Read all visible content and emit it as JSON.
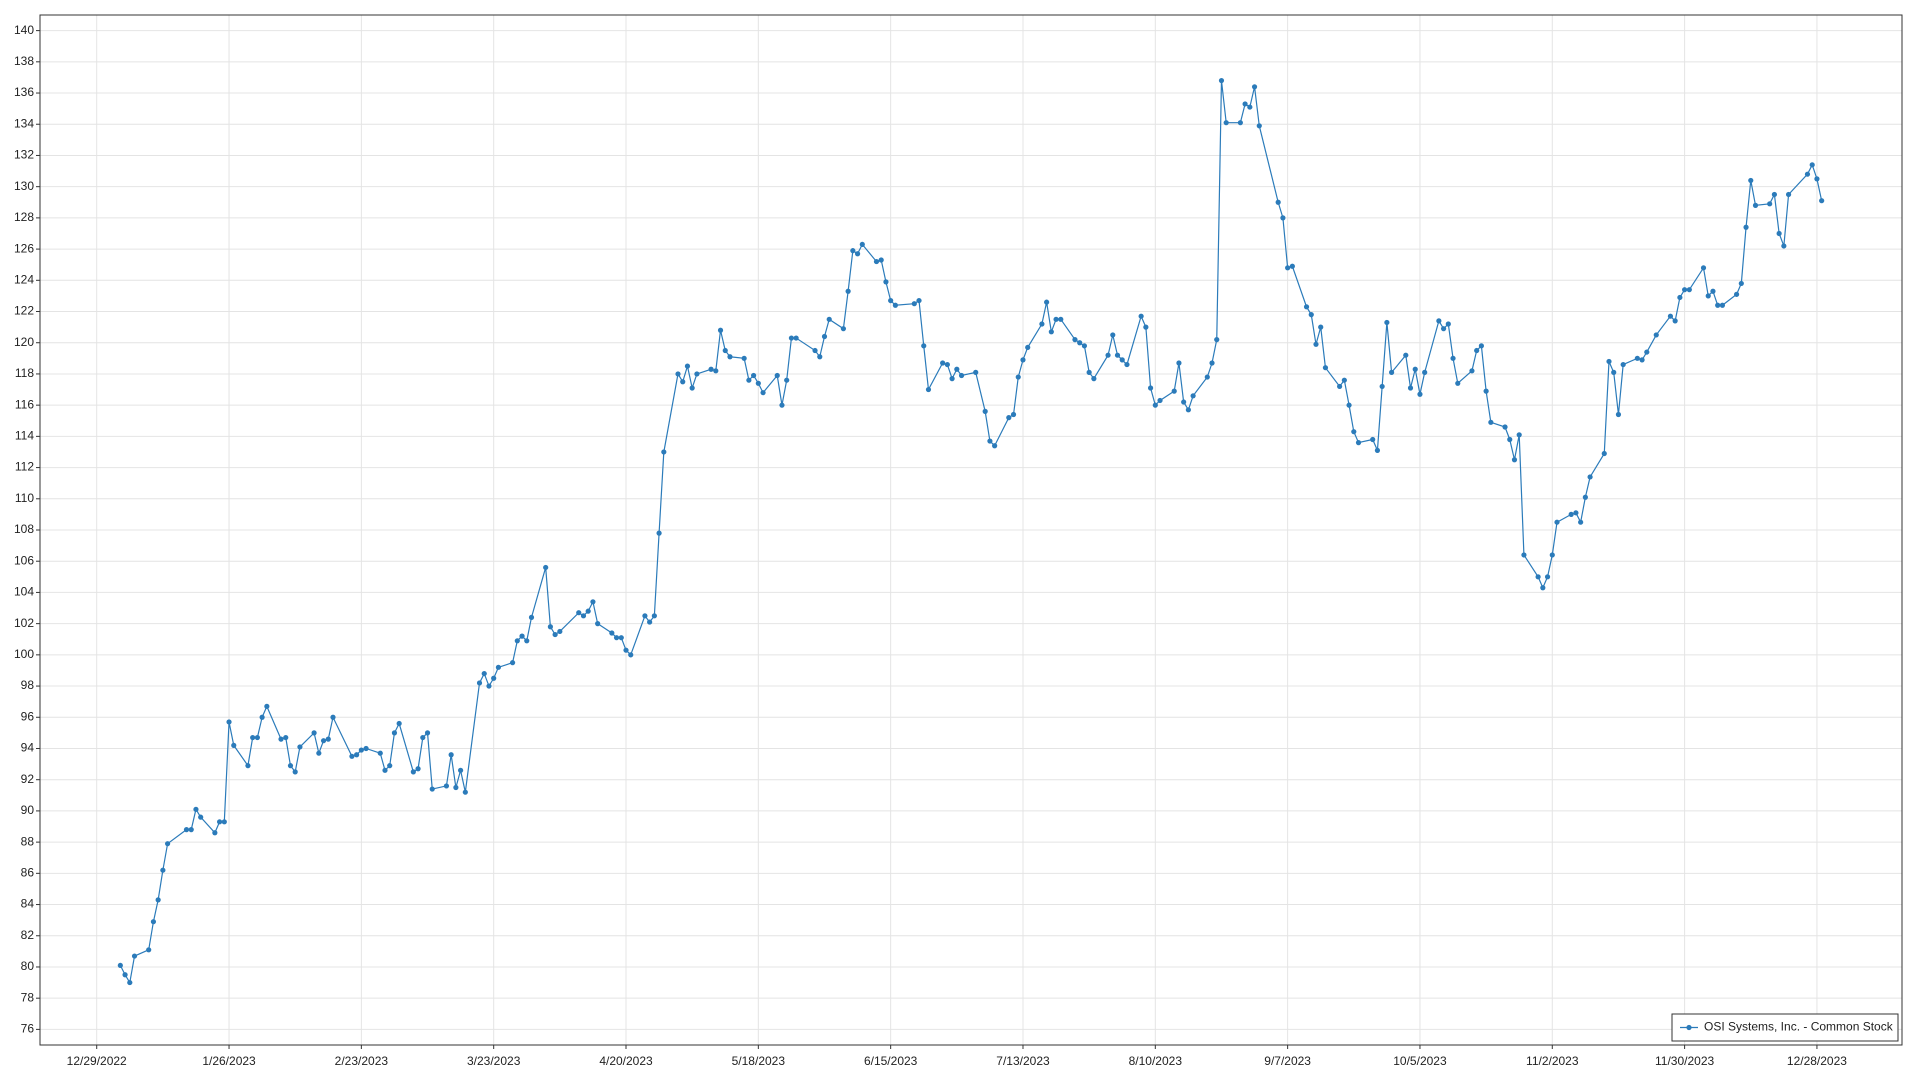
{
  "chart_data": {
    "type": "line",
    "x": [
      "1/3/2023",
      "1/4/2023",
      "1/5/2023",
      "1/6/2023",
      "1/9/2023",
      "1/10/2023",
      "1/11/2023",
      "1/12/2023",
      "1/13/2023",
      "1/17/2023",
      "1/18/2023",
      "1/19/2023",
      "1/20/2023",
      "1/23/2023",
      "1/24/2023",
      "1/25/2023",
      "1/26/2023",
      "1/27/2023",
      "1/30/2023",
      "1/31/2023",
      "2/1/2023",
      "2/2/2023",
      "2/3/2023",
      "2/6/2023",
      "2/7/2023",
      "2/8/2023",
      "2/9/2023",
      "2/10/2023",
      "2/13/2023",
      "2/14/2023",
      "2/15/2023",
      "2/16/2023",
      "2/17/2023",
      "2/21/2023",
      "2/22/2023",
      "2/23/2023",
      "2/24/2023",
      "2/27/2023",
      "2/28/2023",
      "3/1/2023",
      "3/2/2023",
      "3/3/2023",
      "3/6/2023",
      "3/7/2023",
      "3/8/2023",
      "3/9/2023",
      "3/10/2023",
      "3/13/2023",
      "3/14/2023",
      "3/15/2023",
      "3/16/2023",
      "3/17/2023",
      "3/20/2023",
      "3/21/2023",
      "3/22/2023",
      "3/23/2023",
      "3/24/2023",
      "3/27/2023",
      "3/28/2023",
      "3/29/2023",
      "3/30/2023",
      "3/31/2023",
      "4/3/2023",
      "4/4/2023",
      "4/5/2023",
      "4/6/2023",
      "4/10/2023",
      "4/11/2023",
      "4/12/2023",
      "4/13/2023",
      "4/14/2023",
      "4/17/2023",
      "4/18/2023",
      "4/19/2023",
      "4/20/2023",
      "4/21/2023",
      "4/24/2023",
      "4/25/2023",
      "4/26/2023",
      "4/27/2023",
      "4/28/2023",
      "5/1/2023",
      "5/2/2023",
      "5/3/2023",
      "5/4/2023",
      "5/5/2023",
      "5/8/2023",
      "5/9/2023",
      "5/10/2023",
      "5/11/2023",
      "5/12/2023",
      "5/15/2023",
      "5/16/2023",
      "5/17/2023",
      "5/18/2023",
      "5/19/2023",
      "5/22/2023",
      "5/23/2023",
      "5/24/2023",
      "5/25/2023",
      "5/26/2023",
      "5/30/2023",
      "5/31/2023",
      "6/1/2023",
      "6/2/2023",
      "6/5/2023",
      "6/6/2023",
      "6/7/2023",
      "6/8/2023",
      "6/9/2023",
      "6/12/2023",
      "6/13/2023",
      "6/14/2023",
      "6/15/2023",
      "6/16/2023",
      "6/20/2023",
      "6/21/2023",
      "6/22/2023",
      "6/23/2023",
      "6/26/2023",
      "6/27/2023",
      "6/28/2023",
      "6/29/2023",
      "6/30/2023",
      "7/3/2023",
      "7/5/2023",
      "7/6/2023",
      "7/7/2023",
      "7/10/2023",
      "7/11/2023",
      "7/12/2023",
      "7/13/2023",
      "7/14/2023",
      "7/17/2023",
      "7/18/2023",
      "7/19/2023",
      "7/20/2023",
      "7/21/2023",
      "7/24/2023",
      "7/25/2023",
      "7/26/2023",
      "7/27/2023",
      "7/28/2023",
      "7/31/2023",
      "8/1/2023",
      "8/2/2023",
      "8/3/2023",
      "8/4/2023",
      "8/7/2023",
      "8/8/2023",
      "8/9/2023",
      "8/10/2023",
      "8/11/2023",
      "8/14/2023",
      "8/15/2023",
      "8/16/2023",
      "8/17/2023",
      "8/18/2023",
      "8/21/2023",
      "8/22/2023",
      "8/23/2023",
      "8/24/2023",
      "8/25/2023",
      "8/28/2023",
      "8/29/2023",
      "8/30/2023",
      "8/31/2023",
      "9/1/2023",
      "9/5/2023",
      "9/6/2023",
      "9/7/2023",
      "9/8/2023",
      "9/11/2023",
      "9/12/2023",
      "9/13/2023",
      "9/14/2023",
      "9/15/2023",
      "9/18/2023",
      "9/19/2023",
      "9/20/2023",
      "9/21/2023",
      "9/22/2023",
      "9/25/2023",
      "9/26/2023",
      "9/27/2023",
      "9/28/2023",
      "9/29/2023",
      "10/2/2023",
      "10/3/2023",
      "10/4/2023",
      "10/5/2023",
      "10/6/2023",
      "10/9/2023",
      "10/10/2023",
      "10/11/2023",
      "10/12/2023",
      "10/13/2023",
      "10/16/2023",
      "10/17/2023",
      "10/18/2023",
      "10/19/2023",
      "10/20/2023",
      "10/23/2023",
      "10/24/2023",
      "10/25/2023",
      "10/26/2023",
      "10/27/2023",
      "10/30/2023",
      "10/31/2023",
      "11/1/2023",
      "11/2/2023",
      "11/3/2023",
      "11/6/2023",
      "11/7/2023",
      "11/8/2023",
      "11/9/2023",
      "11/10/2023",
      "11/13/2023",
      "11/14/2023",
      "11/15/2023",
      "11/16/2023",
      "11/17/2023",
      "11/20/2023",
      "11/21/2023",
      "11/22/2023",
      "11/24/2023",
      "11/27/2023",
      "11/28/2023",
      "11/29/2023",
      "11/30/2023",
      "12/1/2023",
      "12/4/2023",
      "12/5/2023",
      "12/6/2023",
      "12/7/2023",
      "12/8/2023",
      "12/11/2023",
      "12/12/2023",
      "12/13/2023",
      "12/14/2023",
      "12/15/2023",
      "12/18/2023",
      "12/19/2023",
      "12/20/2023",
      "12/21/2023",
      "12/22/2023",
      "12/26/2023",
      "12/27/2023",
      "12/28/2023",
      "12/29/2023"
    ],
    "series": [
      {
        "name": "OSI Systems, Inc. - Common Stock",
        "color": "#2b7bba",
        "values": [
          80.1,
          79.5,
          79.0,
          80.7,
          81.1,
          82.9,
          84.3,
          86.2,
          87.9,
          88.8,
          88.8,
          90.1,
          89.6,
          88.6,
          89.3,
          89.3,
          95.7,
          94.2,
          92.9,
          94.7,
          94.7,
          96.0,
          96.7,
          94.6,
          94.7,
          92.9,
          92.5,
          94.1,
          95.0,
          93.7,
          94.5,
          94.6,
          96.0,
          93.5,
          93.6,
          93.9,
          94.0,
          93.7,
          92.6,
          92.9,
          95.0,
          95.6,
          92.5,
          92.7,
          94.7,
          95.0,
          91.4,
          91.6,
          93.6,
          91.5,
          92.6,
          91.2,
          98.2,
          98.8,
          98.0,
          98.5,
          99.2,
          99.5,
          100.9,
          101.2,
          100.9,
          102.4,
          105.6,
          101.8,
          101.3,
          101.5,
          102.7,
          102.5,
          102.8,
          103.4,
          102.0,
          101.4,
          101.1,
          101.1,
          100.3,
          100.0,
          102.5,
          102.1,
          102.5,
          107.8,
          113.0,
          118.0,
          117.5,
          118.5,
          117.1,
          118.0,
          118.3,
          118.2,
          120.8,
          119.5,
          119.1,
          119.0,
          117.6,
          117.9,
          117.4,
          116.8,
          117.9,
          116.0,
          117.6,
          120.3,
          120.3,
          119.5,
          119.1,
          120.4,
          121.5,
          120.9,
          123.3,
          125.9,
          125.7,
          126.3,
          125.2,
          125.3,
          123.9,
          122.7,
          122.4,
          122.5,
          122.7,
          119.8,
          117.0,
          118.7,
          118.6,
          117.7,
          118.3,
          117.9,
          118.1,
          115.6,
          113.7,
          113.4,
          115.2,
          115.4,
          117.8,
          118.9,
          119.7,
          121.2,
          122.6,
          120.7,
          121.5,
          121.5,
          120.2,
          120.0,
          119.8,
          118.1,
          117.7,
          119.2,
          120.5,
          119.2,
          118.9,
          118.6,
          121.7,
          121.0,
          117.1,
          116.0,
          116.3,
          116.9,
          118.7,
          116.2,
          115.7,
          116.6,
          117.8,
          118.7,
          120.2,
          136.8,
          134.1,
          134.1,
          135.3,
          135.1,
          136.4,
          133.9,
          129.0,
          128.0,
          124.8,
          124.9,
          122.3,
          121.8,
          119.9,
          121.0,
          118.4,
          117.2,
          117.6,
          116.0,
          114.3,
          113.6,
          113.8,
          113.1,
          117.2,
          121.3,
          118.1,
          119.2,
          117.1,
          118.3,
          116.7,
          118.1,
          121.4,
          120.9,
          121.2,
          119.0,
          117.4,
          118.2,
          119.5,
          119.8,
          116.9,
          114.9,
          114.6,
          113.8,
          112.5,
          114.1,
          106.4,
          105.0,
          104.3,
          105.0,
          106.4,
          108.5,
          109.0,
          109.1,
          108.5,
          110.1,
          111.4,
          112.9,
          118.8,
          118.1,
          115.4,
          118.6,
          119.0,
          118.9,
          119.4,
          120.5,
          121.7,
          121.4,
          122.9,
          123.4,
          123.4,
          124.8,
          123.0,
          123.3,
          122.4,
          122.4,
          123.1,
          123.8,
          127.4,
          130.4,
          128.8,
          128.9,
          129.5,
          127.0,
          126.2,
          129.5,
          130.8,
          131.4,
          130.5,
          129.1
        ]
      }
    ],
    "xlim": [
      "12/17/2022",
      "1/15/2024"
    ],
    "xticks": [
      "12/29/2022",
      "1/26/2023",
      "2/23/2023",
      "3/23/2023",
      "4/20/2023",
      "5/18/2023",
      "6/15/2023",
      "7/13/2023",
      "8/10/2023",
      "9/7/2023",
      "10/5/2023",
      "11/2/2023",
      "11/30/2023",
      "12/28/2023"
    ],
    "ylim": [
      75,
      141
    ],
    "yticks": [
      76,
      78,
      80,
      82,
      84,
      86,
      88,
      90,
      92,
      94,
      96,
      98,
      100,
      102,
      104,
      106,
      108,
      110,
      112,
      114,
      116,
      118,
      120,
      122,
      124,
      126,
      128,
      130,
      132,
      134,
      136,
      138,
      140
    ],
    "grid": true,
    "legend": "lower right"
  }
}
